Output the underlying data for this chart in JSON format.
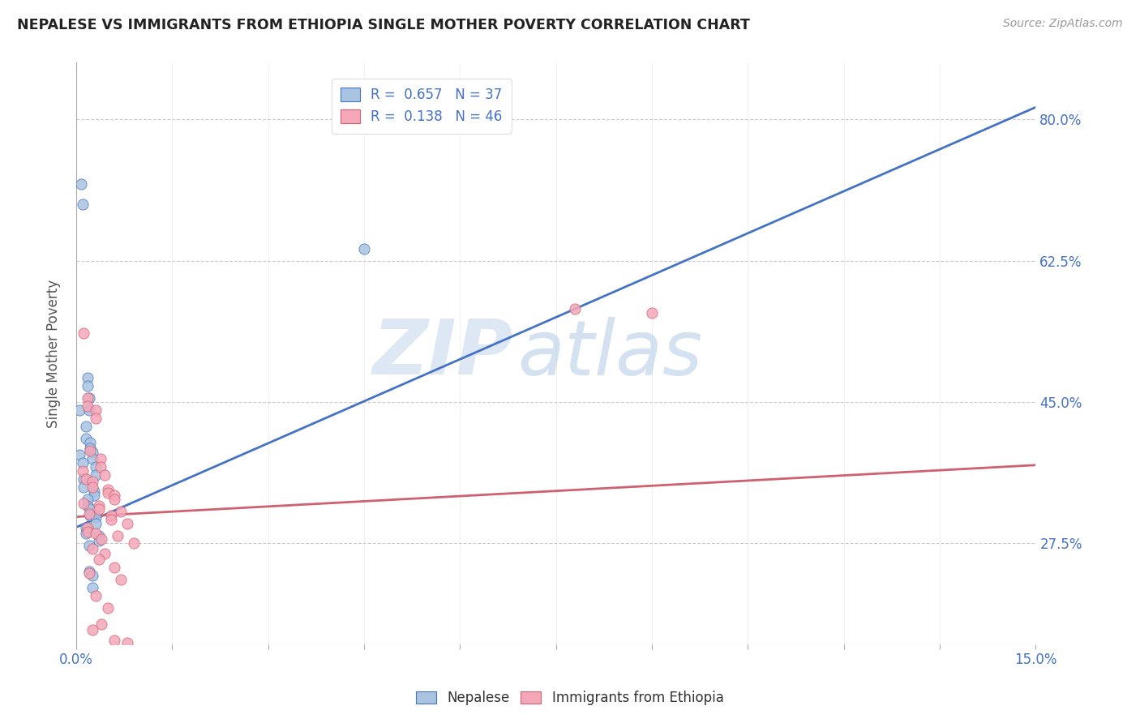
{
  "title": "NEPALESE VS IMMIGRANTS FROM ETHIOPIA SINGLE MOTHER POVERTY CORRELATION CHART",
  "source": "Source: ZipAtlas.com",
  "ylabel": "Single Mother Poverty",
  "legend_blue_R": "0.657",
  "legend_blue_N": "37",
  "legend_pink_R": "0.138",
  "legend_pink_N": "46",
  "legend_label_blue": "Nepalese",
  "legend_label_pink": "Immigrants from Ethiopia",
  "blue_color": "#a8c4e0",
  "blue_line_color": "#4472c4",
  "pink_color": "#f4a7b9",
  "pink_line_color": "#d06070",
  "watermark_zip": "ZIP",
  "watermark_atlas": "atlas",
  "xlim": [
    0.0,
    0.15
  ],
  "ylim": [
    0.15,
    0.87
  ],
  "y_ticks": [
    0.275,
    0.45,
    0.625,
    0.8
  ],
  "y_tick_labels": [
    "27.5%",
    "45.0%",
    "62.5%",
    "80.0%"
  ],
  "blue_line_x": [
    0.0,
    0.15
  ],
  "blue_line_y": [
    0.295,
    0.815
  ],
  "pink_line_x": [
    0.0,
    0.15
  ],
  "pink_line_y": [
    0.308,
    0.372
  ],
  "blue_scatter": [
    [
      0.0008,
      0.72
    ],
    [
      0.001,
      0.695
    ],
    [
      0.0005,
      0.44
    ],
    [
      0.0018,
      0.48
    ],
    [
      0.0018,
      0.47
    ],
    [
      0.0005,
      0.385
    ],
    [
      0.002,
      0.455
    ],
    [
      0.002,
      0.44
    ],
    [
      0.0015,
      0.42
    ],
    [
      0.0015,
      0.405
    ],
    [
      0.0022,
      0.4
    ],
    [
      0.0022,
      0.393
    ],
    [
      0.0025,
      0.388
    ],
    [
      0.0025,
      0.38
    ],
    [
      0.001,
      0.375
    ],
    [
      0.003,
      0.37
    ],
    [
      0.003,
      0.36
    ],
    [
      0.0012,
      0.355
    ],
    [
      0.0012,
      0.345
    ],
    [
      0.0028,
      0.34
    ],
    [
      0.0028,
      0.335
    ],
    [
      0.0018,
      0.33
    ],
    [
      0.0018,
      0.322
    ],
    [
      0.0022,
      0.318
    ],
    [
      0.0022,
      0.31
    ],
    [
      0.003,
      0.308
    ],
    [
      0.003,
      0.3
    ],
    [
      0.0015,
      0.295
    ],
    [
      0.0015,
      0.288
    ],
    [
      0.0035,
      0.285
    ],
    [
      0.0035,
      0.278
    ],
    [
      0.002,
      0.272
    ],
    [
      0.002,
      0.24
    ],
    [
      0.0025,
      0.235
    ],
    [
      0.0025,
      0.22
    ],
    [
      0.045,
      0.64
    ]
  ],
  "pink_scatter": [
    [
      0.0012,
      0.535
    ],
    [
      0.0018,
      0.455
    ],
    [
      0.0018,
      0.445
    ],
    [
      0.003,
      0.44
    ],
    [
      0.003,
      0.43
    ],
    [
      0.0022,
      0.39
    ],
    [
      0.0038,
      0.38
    ],
    [
      0.0038,
      0.37
    ],
    [
      0.001,
      0.365
    ],
    [
      0.0045,
      0.36
    ],
    [
      0.0015,
      0.355
    ],
    [
      0.0025,
      0.352
    ],
    [
      0.0025,
      0.345
    ],
    [
      0.005,
      0.342
    ],
    [
      0.005,
      0.338
    ],
    [
      0.006,
      0.335
    ],
    [
      0.006,
      0.33
    ],
    [
      0.0012,
      0.325
    ],
    [
      0.0035,
      0.322
    ],
    [
      0.0035,
      0.318
    ],
    [
      0.007,
      0.315
    ],
    [
      0.002,
      0.312
    ],
    [
      0.0055,
      0.31
    ],
    [
      0.0055,
      0.305
    ],
    [
      0.008,
      0.3
    ],
    [
      0.0018,
      0.295
    ],
    [
      0.0018,
      0.29
    ],
    [
      0.003,
      0.288
    ],
    [
      0.0065,
      0.285
    ],
    [
      0.004,
      0.28
    ],
    [
      0.009,
      0.275
    ],
    [
      0.0025,
      0.268
    ],
    [
      0.0045,
      0.262
    ],
    [
      0.0035,
      0.255
    ],
    [
      0.006,
      0.245
    ],
    [
      0.002,
      0.238
    ],
    [
      0.007,
      0.23
    ],
    [
      0.003,
      0.21
    ],
    [
      0.005,
      0.195
    ],
    [
      0.004,
      0.175
    ],
    [
      0.0025,
      0.168
    ],
    [
      0.006,
      0.155
    ],
    [
      0.008,
      0.152
    ],
    [
      0.09,
      0.56
    ],
    [
      0.078,
      0.565
    ]
  ]
}
